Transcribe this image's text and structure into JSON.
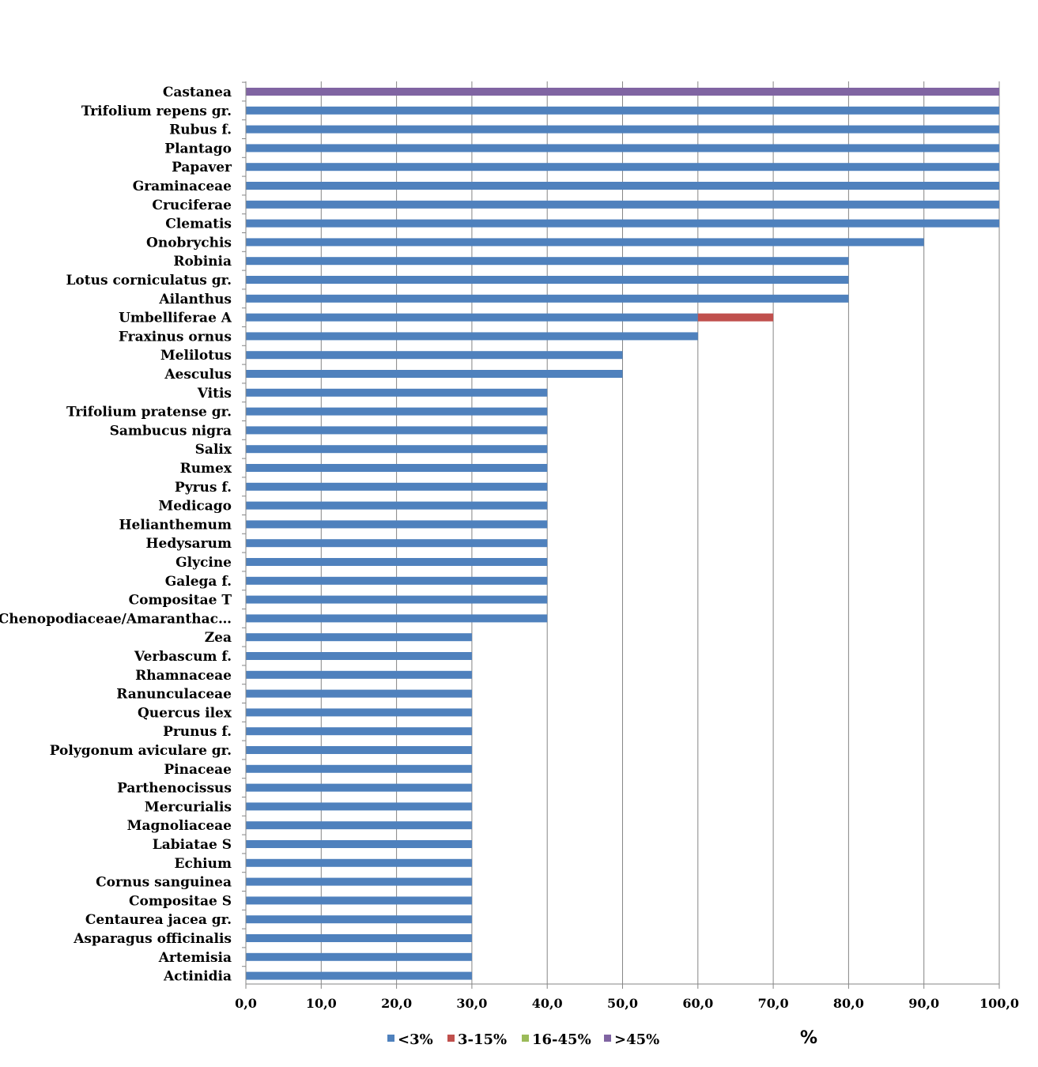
{
  "chart_data": {
    "type": "bar",
    "orientation": "horizontal",
    "stacked": true,
    "title": "",
    "xlabel": "%",
    "ylabel": "",
    "xlim": [
      0,
      100
    ],
    "x_ticks": [
      "0,0",
      "10,0",
      "20,0",
      "30,0",
      "40,0",
      "50,0",
      "60,0",
      "70,0",
      "80,0",
      "90,0",
      "100,0"
    ],
    "grid": true,
    "legend_position": "bottom",
    "categories": [
      "Castanea",
      "Trifolium repens gr.",
      "Rubus f.",
      "Plantago",
      "Papaver",
      "Graminaceae",
      "Cruciferae",
      "Clematis",
      "Onobrychis",
      "Robinia",
      "Lotus corniculatus gr.",
      "Ailanthus",
      "Umbelliferae A",
      "Fraxinus ornus",
      "Melilotus",
      "Aesculus",
      "Vitis",
      "Trifolium pratense gr.",
      "Sambucus nigra",
      "Salix",
      "Rumex",
      "Pyrus f.",
      "Medicago",
      "Helianthemum",
      "Hedysarum",
      "Glycine",
      "Galega f.",
      "Compositae T",
      "Chenopodiaceae/Amaranthac…",
      "Zea",
      "Verbascum f.",
      "Rhamnaceae",
      "Ranunculaceae",
      "Quercus ilex",
      "Prunus f.",
      "Polygonum aviculare gr.",
      "Pinaceae",
      "Parthenocissus",
      "Mercurialis",
      "Magnoliaceae",
      "Labiatae S",
      "Echium",
      "Cornus sanguinea",
      "Compositae S",
      "Centaurea jacea gr.",
      "Asparagus officinalis",
      "Artemisia",
      "Actinidia"
    ],
    "series": [
      {
        "name": "<3%",
        "color": "#4f81bd",
        "values": [
          0,
          100,
          100,
          100,
          100,
          100,
          100,
          100,
          90,
          80,
          80,
          80,
          60,
          60,
          50,
          50,
          40,
          40,
          40,
          40,
          40,
          40,
          40,
          40,
          40,
          40,
          40,
          40,
          40,
          30,
          30,
          30,
          30,
          30,
          30,
          30,
          30,
          30,
          30,
          30,
          30,
          30,
          30,
          30,
          30,
          30,
          30,
          30
        ]
      },
      {
        "name": "3-15%",
        "color": "#c0504d",
        "values": [
          0,
          0,
          0,
          0,
          0,
          0,
          0,
          0,
          0,
          0,
          0,
          0,
          10,
          0,
          0,
          0,
          0,
          0,
          0,
          0,
          0,
          0,
          0,
          0,
          0,
          0,
          0,
          0,
          0,
          0,
          0,
          0,
          0,
          0,
          0,
          0,
          0,
          0,
          0,
          0,
          0,
          0,
          0,
          0,
          0,
          0,
          0,
          0
        ]
      },
      {
        "name": "16-45%",
        "color": "#9bbb59",
        "values": [
          0,
          0,
          0,
          0,
          0,
          0,
          0,
          0,
          0,
          0,
          0,
          0,
          0,
          0,
          0,
          0,
          0,
          0,
          0,
          0,
          0,
          0,
          0,
          0,
          0,
          0,
          0,
          0,
          0,
          0,
          0,
          0,
          0,
          0,
          0,
          0,
          0,
          0,
          0,
          0,
          0,
          0,
          0,
          0,
          0,
          0,
          0,
          0
        ]
      },
      {
        "name": ">45%",
        "color": "#8064a2",
        "values": [
          100,
          0,
          0,
          0,
          0,
          0,
          0,
          0,
          0,
          0,
          0,
          0,
          0,
          0,
          0,
          0,
          0,
          0,
          0,
          0,
          0,
          0,
          0,
          0,
          0,
          0,
          0,
          0,
          0,
          0,
          0,
          0,
          0,
          0,
          0,
          0,
          0,
          0,
          0,
          0,
          0,
          0,
          0,
          0,
          0,
          0,
          0,
          0
        ]
      }
    ],
    "grid_color": "#868686",
    "axis_color": "#868686"
  }
}
